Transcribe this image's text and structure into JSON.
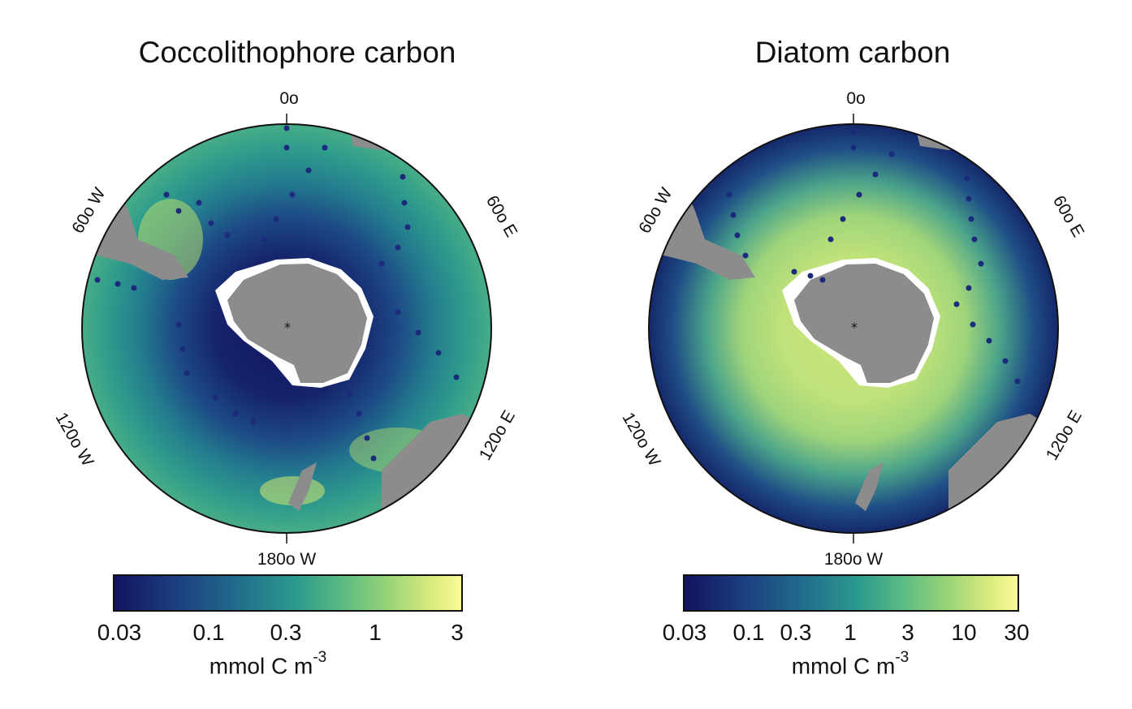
{
  "panels": [
    {
      "title": "Coccolithophore carbon",
      "lon_labels": [
        "0o",
        "60o E",
        "120o E",
        "180o W",
        "120o W",
        "60o W"
      ],
      "colorbar": {
        "ticks": [
          "0.03",
          "0.1",
          "0.3",
          "1",
          "3"
        ],
        "unit": "mmol C m",
        "unit_exponent": "-3"
      }
    },
    {
      "title": "Diatom carbon",
      "lon_labels": [
        "0o",
        "60o E",
        "120o E",
        "180o W",
        "120o W",
        "60o W"
      ],
      "colorbar": {
        "ticks": [
          "0.03",
          "0.1",
          "0.3",
          "1",
          "3",
          "10",
          "30"
        ],
        "unit": "mmol C m",
        "unit_exponent": "-3"
      }
    }
  ],
  "colors": {
    "colormap": [
      "#12135e",
      "#1c3f80",
      "#216d8c",
      "#2b9a8e",
      "#5cbc82",
      "#9ed677",
      "#dcec7c",
      "#fbfa9a"
    ],
    "land": "#8c8c8c",
    "ice_shelf": "#ffffff"
  }
}
